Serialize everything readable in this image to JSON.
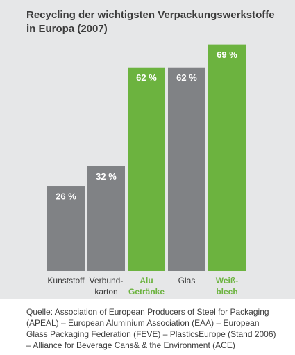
{
  "chart_data": {
    "type": "bar",
    "title": "Recycling der wichtigsten Verpackungswerkstoffe in Europa (2007)",
    "categories": [
      "Kunststoff",
      "Verbund-\nkarton",
      "Alu\nGetränke",
      "Glas",
      "Weiß-\nblech"
    ],
    "values": [
      26,
      32,
      62,
      62,
      69
    ],
    "value_labels": [
      "26 %",
      "32 %",
      "62 %",
      "62 %",
      "69 %"
    ],
    "colors": [
      "#808285",
      "#808285",
      "#6cb33f",
      "#808285",
      "#6cb33f"
    ],
    "source": "Quelle: Association of European Producers of Steel for Packaging (APEAL) – European Aluminium Association (EAA) – European Glass Packaging Federation (FEVE) – PlasticsEurope (Stand 2006) – Alliance for Beverage Cans& & the Environment (ACE)"
  }
}
